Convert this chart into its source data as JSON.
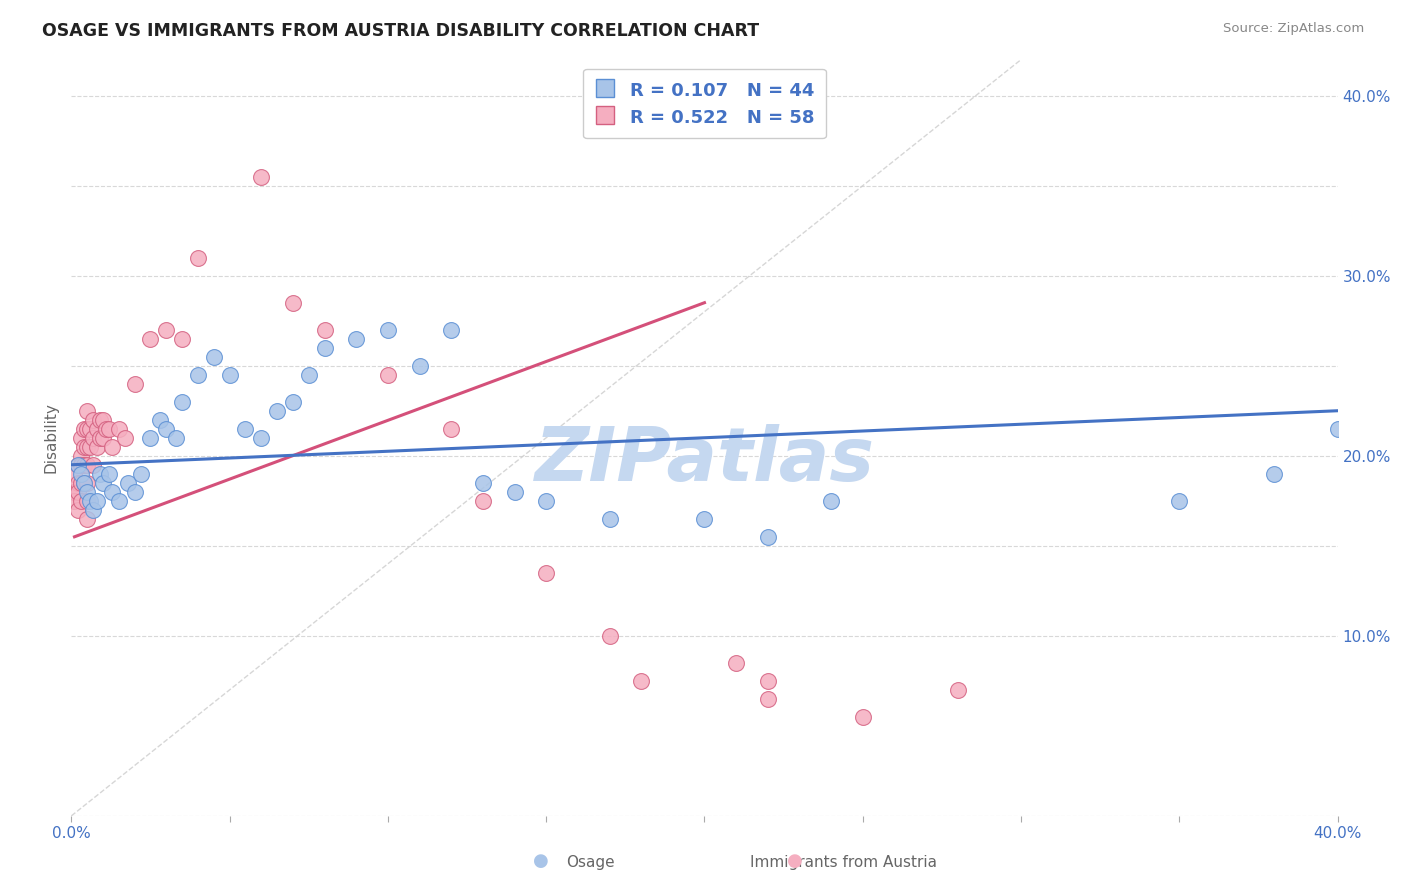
{
  "title": "OSAGE VS IMMIGRANTS FROM AUSTRIA DISABILITY CORRELATION CHART",
  "source": "Source: ZipAtlas.com",
  "ylabel": "Disability",
  "xlim": [
    0.0,
    0.4
  ],
  "ylim": [
    0.0,
    0.42
  ],
  "osage_R": "0.107",
  "osage_N": "44",
  "austria_R": "0.522",
  "austria_N": "58",
  "osage_color": "#a8c4e8",
  "austria_color": "#f5aec0",
  "osage_edge_color": "#5b8fd4",
  "austria_edge_color": "#d46080",
  "osage_line_color": "#4472c4",
  "austria_line_color": "#d4507a",
  "diagonal_color": "#cccccc",
  "watermark": "ZIPatlas",
  "watermark_color": "#c5d8f0",
  "background_color": "#ffffff",
  "grid_color": "#d8d8d8",
  "title_color": "#222222",
  "source_color": "#888888",
  "label_color": "#666666",
  "tick_color": "#4472c4",
  "osage_x": [
    0.002,
    0.003,
    0.004,
    0.005,
    0.006,
    0.007,
    0.008,
    0.009,
    0.01,
    0.012,
    0.013,
    0.015,
    0.018,
    0.02,
    0.022,
    0.025,
    0.028,
    0.03,
    0.033,
    0.035,
    0.04,
    0.045,
    0.05,
    0.055,
    0.06,
    0.065,
    0.07,
    0.075,
    0.08,
    0.09,
    0.1,
    0.11,
    0.12,
    0.13,
    0.14,
    0.15,
    0.17,
    0.2,
    0.22,
    0.24,
    0.35,
    0.38,
    0.4,
    0.42
  ],
  "osage_y": [
    0.195,
    0.19,
    0.185,
    0.18,
    0.175,
    0.17,
    0.175,
    0.19,
    0.185,
    0.19,
    0.18,
    0.175,
    0.185,
    0.18,
    0.19,
    0.21,
    0.22,
    0.215,
    0.21,
    0.23,
    0.245,
    0.255,
    0.245,
    0.215,
    0.21,
    0.225,
    0.23,
    0.245,
    0.26,
    0.265,
    0.27,
    0.25,
    0.27,
    0.185,
    0.18,
    0.175,
    0.165,
    0.165,
    0.155,
    0.175,
    0.175,
    0.19,
    0.215,
    0.215
  ],
  "austria_x": [
    0.001,
    0.001,
    0.001,
    0.002,
    0.002,
    0.002,
    0.002,
    0.003,
    0.003,
    0.003,
    0.003,
    0.003,
    0.004,
    0.004,
    0.004,
    0.004,
    0.005,
    0.005,
    0.005,
    0.005,
    0.005,
    0.005,
    0.005,
    0.006,
    0.006,
    0.007,
    0.007,
    0.007,
    0.008,
    0.008,
    0.009,
    0.009,
    0.01,
    0.01,
    0.011,
    0.012,
    0.013,
    0.015,
    0.017,
    0.02,
    0.025,
    0.03,
    0.035,
    0.04,
    0.06,
    0.07,
    0.08,
    0.1,
    0.12,
    0.13,
    0.15,
    0.17,
    0.18,
    0.21,
    0.22,
    0.22,
    0.25,
    0.28
  ],
  "austria_y": [
    0.19,
    0.18,
    0.175,
    0.195,
    0.185,
    0.18,
    0.17,
    0.21,
    0.2,
    0.195,
    0.185,
    0.175,
    0.215,
    0.205,
    0.195,
    0.185,
    0.225,
    0.215,
    0.205,
    0.195,
    0.185,
    0.175,
    0.165,
    0.215,
    0.205,
    0.22,
    0.21,
    0.195,
    0.215,
    0.205,
    0.22,
    0.21,
    0.22,
    0.21,
    0.215,
    0.215,
    0.205,
    0.215,
    0.21,
    0.24,
    0.265,
    0.27,
    0.265,
    0.31,
    0.355,
    0.285,
    0.27,
    0.245,
    0.215,
    0.175,
    0.135,
    0.1,
    0.075,
    0.085,
    0.065,
    0.075,
    0.055,
    0.07
  ],
  "osage_trend": [
    0.195,
    0.225
  ],
  "austria_trend_x": [
    0.001,
    0.2
  ],
  "austria_trend_y": [
    0.155,
    0.285
  ],
  "ytick_vals": [
    0.0,
    0.1,
    0.15,
    0.2,
    0.25,
    0.3,
    0.35,
    0.4
  ],
  "ytick_labels": [
    "",
    "10.0%",
    "",
    "20.0%",
    "",
    "30.0%",
    "",
    "40.0%"
  ],
  "xtick_vals": [
    0.0,
    0.05,
    0.1,
    0.15,
    0.2,
    0.25,
    0.3,
    0.35,
    0.4
  ],
  "xtick_labels": [
    "0.0%",
    "",
    "",
    "",
    "",
    "",
    "",
    "",
    "40.0%"
  ]
}
